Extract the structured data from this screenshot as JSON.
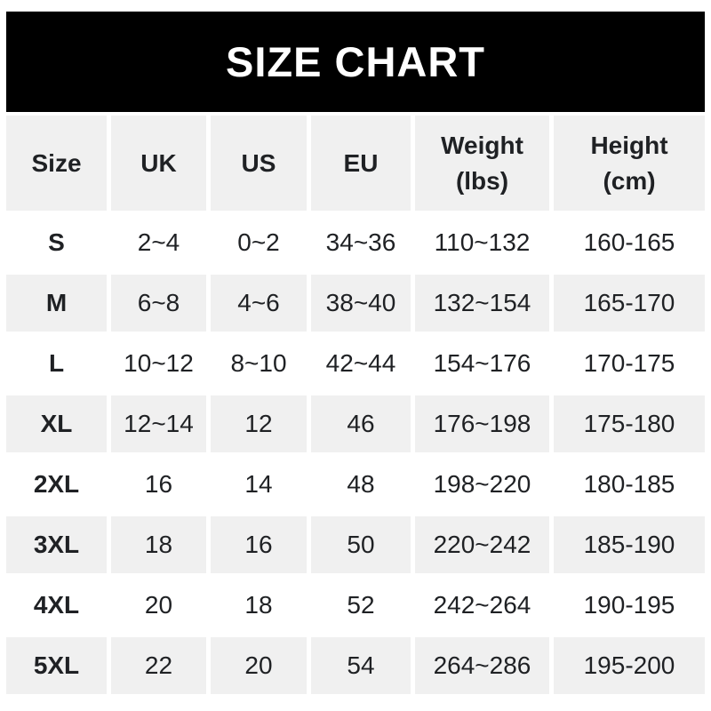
{
  "banner": {
    "title": "SIZE CHART"
  },
  "table": {
    "columns": [
      {
        "key": "size",
        "label": "Size",
        "sublabel": ""
      },
      {
        "key": "uk",
        "label": "UK",
        "sublabel": ""
      },
      {
        "key": "us",
        "label": "US",
        "sublabel": ""
      },
      {
        "key": "eu",
        "label": "EU",
        "sublabel": ""
      },
      {
        "key": "weight",
        "label": "Weight",
        "sublabel": "(lbs)"
      },
      {
        "key": "height",
        "label": "Height",
        "sublabel": "(cm)"
      }
    ],
    "rows": [
      {
        "size": "S",
        "uk": "2~4",
        "us": "0~2",
        "eu": "34~36",
        "weight": "110~132",
        "height": "160-165"
      },
      {
        "size": "M",
        "uk": "6~8",
        "us": "4~6",
        "eu": "38~40",
        "weight": "132~154",
        "height": "165-170"
      },
      {
        "size": "L",
        "uk": "10~12",
        "us": "8~10",
        "eu": "42~44",
        "weight": "154~176",
        "height": "170-175"
      },
      {
        "size": "XL",
        "uk": "12~14",
        "us": "12",
        "eu": "46",
        "weight": "176~198",
        "height": "175-180"
      },
      {
        "size": "2XL",
        "uk": "16",
        "us": "14",
        "eu": "48",
        "weight": "198~220",
        "height": "180-185"
      },
      {
        "size": "3XL",
        "uk": "18",
        "us": "16",
        "eu": "50",
        "weight": "220~242",
        "height": "185-190"
      },
      {
        "size": "4XL",
        "uk": "20",
        "us": "18",
        "eu": "52",
        "weight": "242~264",
        "height": "190-195"
      },
      {
        "size": "5XL",
        "uk": "22",
        "us": "20",
        "eu": "54",
        "weight": "264~286",
        "height": "195-200"
      }
    ]
  },
  "colors": {
    "banner_bg": "#000000",
    "banner_text": "#ffffff",
    "alt_row_bg": "#f0f0f0",
    "text": "#1f2124",
    "page_bg": "#ffffff"
  }
}
